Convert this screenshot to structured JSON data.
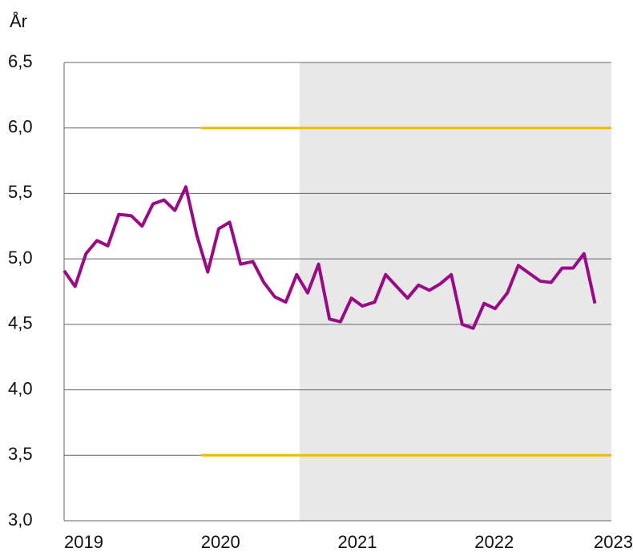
{
  "chart_data": {
    "type": "line",
    "y_axis_label": "År",
    "x": [
      2019,
      2019.08,
      2019.16,
      2019.24,
      2019.32,
      2019.4,
      2019.49,
      2019.57,
      2019.65,
      2019.73,
      2019.81,
      2019.89,
      2019.97,
      2020.05,
      2020.13,
      2020.21,
      2020.29,
      2020.38,
      2020.46,
      2020.54,
      2020.62,
      2020.7,
      2020.78,
      2020.86,
      2020.94,
      2021.02,
      2021.1,
      2021.18,
      2021.27,
      2021.35,
      2021.43,
      2021.51,
      2021.59,
      2021.67,
      2021.75,
      2021.83,
      2021.91,
      2021.99,
      2022.07,
      2022.15,
      2022.24,
      2022.32,
      2022.4,
      2022.48,
      2022.56,
      2022.64,
      2022.72,
      2022.8,
      2022.88
    ],
    "series": [
      {
        "color": "#9b0a86",
        "values": [
          4.91,
          4.79,
          5.04,
          5.14,
          5.1,
          5.34,
          5.33,
          5.25,
          5.42,
          5.45,
          5.37,
          5.55,
          5.18,
          4.9,
          5.23,
          5.28,
          4.96,
          4.98,
          4.82,
          4.71,
          4.67,
          4.88,
          4.74,
          4.96,
          4.54,
          4.52,
          4.7,
          4.64,
          4.67,
          4.88,
          4.79,
          4.7,
          4.8,
          4.76,
          4.81,
          4.88,
          4.5,
          4.47,
          4.66,
          4.62,
          4.74,
          4.95,
          4.89,
          4.83,
          4.82,
          4.93,
          4.93,
          5.04,
          4.66
        ]
      }
    ],
    "xlim": [
      2019,
      2023
    ],
    "xticks": [
      2019,
      2020,
      2021,
      2022,
      2023
    ],
    "ylim": [
      3,
      6.5
    ],
    "yticks": [
      {
        "value": 3,
        "label": "3,0"
      },
      {
        "value": 3.5,
        "label": "3,5"
      },
      {
        "value": 4,
        "label": "4,0"
      },
      {
        "value": 4.5,
        "label": "4,5"
      },
      {
        "value": 5,
        "label": "5,0"
      },
      {
        "value": 5.5,
        "label": "5,5"
      },
      {
        "value": 6,
        "label": "6,0"
      },
      {
        "value": 6.5,
        "label": "6,5"
      }
    ],
    "grid": true,
    "shaded_xrange": [
      2020.72,
      2023
    ],
    "shade_color": "#e8e8e8",
    "reference_lines": [
      {
        "y": 6,
        "x": [
          2020,
          2023
        ],
        "color": "#f5b800"
      },
      {
        "y": 3.5,
        "x": [
          2020,
          2023
        ],
        "color": "#f5b800"
      }
    ]
  }
}
